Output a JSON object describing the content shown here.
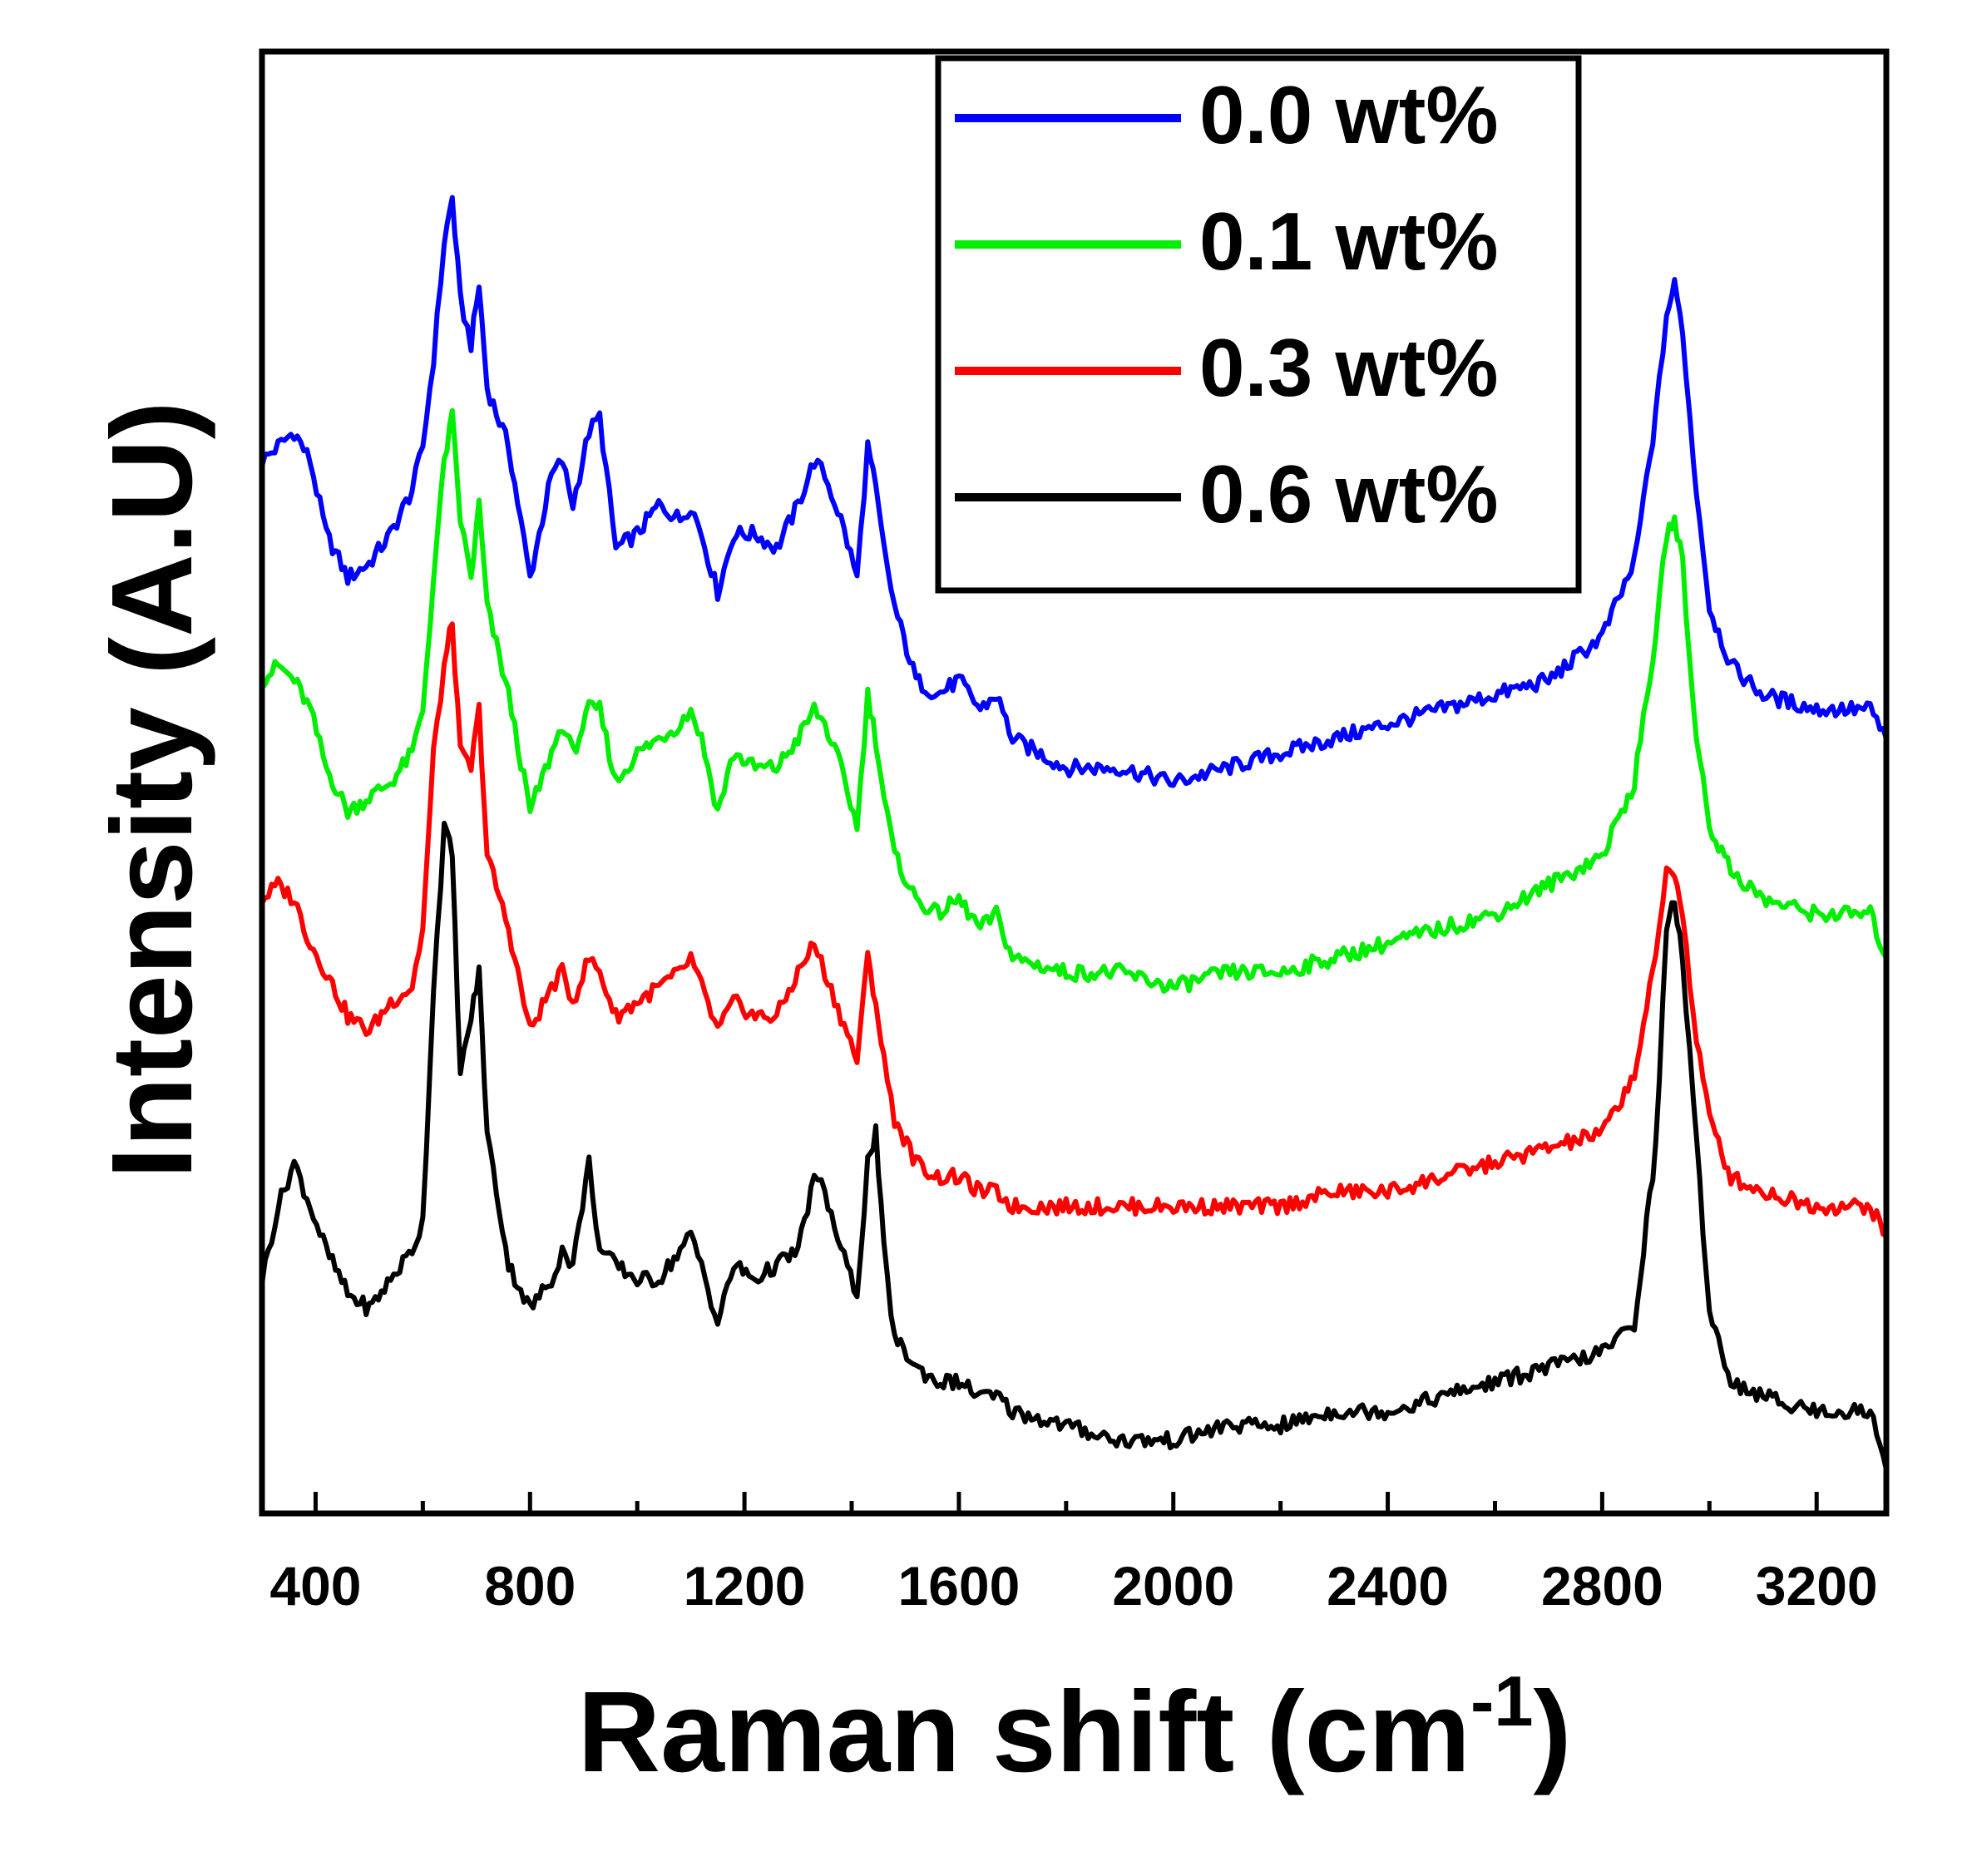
{
  "chart_data": {
    "type": "line",
    "title": "",
    "xlabel": "Raman shift (cm",
    "xlabel_superscript": "-1",
    "xlabel_suffix": ")",
    "ylabel": "Intensity (A.U)",
    "xlim": [
      300,
      3330
    ],
    "ylim": [
      0,
      100
    ],
    "y_ticks_shown": false,
    "grid": false,
    "legend_position": "top-right",
    "x_ticks": [
      400,
      800,
      1200,
      1600,
      2000,
      2400,
      2800,
      3200
    ],
    "x_tick_labels": [
      "400",
      "800",
      "1200",
      "1600",
      "2000",
      "2400",
      "2800",
      "3200"
    ],
    "series": [
      {
        "name": "0.0 wt%",
        "color": "#0000ff",
        "x": [
          300,
          330,
          360,
          390,
          420,
          460,
          500,
          540,
          580,
          600,
          620,
          640,
          655,
          670,
          690,
          705,
          720,
          760,
          800,
          840,
          860,
          880,
          910,
          930,
          960,
          1000,
          1040,
          1080,
          1100,
          1120,
          1150,
          1180,
          1220,
          1260,
          1300,
          1330,
          1350,
          1380,
          1410,
          1430,
          1445,
          1460,
          1480,
          1520,
          1560,
          1600,
          1640,
          1670,
          1700,
          1800,
          1900,
          2000,
          2100,
          2200,
          2300,
          2400,
          2500,
          2600,
          2700,
          2800,
          2860,
          2900,
          2920,
          2935,
          2950,
          2970,
          3000,
          3040,
          3100,
          3200,
          3300,
          3330
        ],
        "y": [
          72,
          73,
          74,
          72,
          67,
          64,
          65,
          67,
          70,
          73,
          79,
          87,
          90,
          83,
          80,
          84,
          77,
          73,
          64,
          71,
          72,
          69,
          74,
          75,
          66,
          67,
          69,
          68,
          69,
          67,
          63,
          67,
          67,
          66,
          69,
          72,
          71,
          68,
          64,
          73,
          70,
          66,
          62,
          57,
          56,
          57,
          55,
          56,
          53,
          51,
          51,
          50,
          51,
          52,
          53,
          54,
          55,
          56,
          57,
          60,
          65,
          75,
          82,
          84,
          81,
          72,
          62,
          58,
          56,
          55,
          55,
          53
        ]
      },
      {
        "name": "0.1 wt%",
        "color": "#00ee00",
        "x": [
          300,
          330,
          360,
          390,
          420,
          460,
          500,
          540,
          580,
          600,
          620,
          640,
          655,
          670,
          690,
          705,
          720,
          760,
          800,
          840,
          860,
          880,
          910,
          930,
          960,
          1000,
          1040,
          1080,
          1100,
          1120,
          1150,
          1180,
          1220,
          1260,
          1300,
          1330,
          1350,
          1380,
          1410,
          1430,
          1445,
          1460,
          1480,
          1520,
          1560,
          1600,
          1640,
          1670,
          1700,
          1800,
          1900,
          2000,
          2100,
          2200,
          2300,
          2400,
          2500,
          2600,
          2700,
          2800,
          2860,
          2900,
          2920,
          2935,
          2950,
          2970,
          3000,
          3040,
          3100,
          3200,
          3300,
          3330
        ],
        "y": [
          57,
          58,
          57,
          55,
          51,
          48,
          49,
          50,
          52,
          55,
          64,
          72,
          75,
          68,
          64,
          69,
          62,
          56,
          48,
          52,
          54,
          52,
          55,
          55,
          50,
          52,
          53,
          54,
          55,
          53,
          48,
          52,
          51,
          51,
          53,
          55,
          54,
          51,
          47,
          56,
          53,
          49,
          45,
          42,
          41,
          42,
          40,
          41,
          38,
          37,
          37,
          36,
          37,
          37,
          38,
          39,
          40,
          41,
          43,
          45,
          50,
          60,
          67,
          68,
          65,
          55,
          47,
          44,
          42,
          41,
          41,
          38
        ]
      },
      {
        "name": "0.3 wt%",
        "color": "#ff0000",
        "x": [
          300,
          330,
          360,
          390,
          420,
          460,
          500,
          540,
          580,
          600,
          620,
          640,
          655,
          670,
          690,
          705,
          720,
          760,
          800,
          840,
          860,
          880,
          910,
          930,
          960,
          1000,
          1040,
          1080,
          1100,
          1120,
          1150,
          1180,
          1220,
          1260,
          1300,
          1330,
          1350,
          1380,
          1410,
          1430,
          1445,
          1460,
          1480,
          1520,
          1560,
          1600,
          1640,
          1670,
          1700,
          1800,
          1900,
          2000,
          2100,
          2200,
          2300,
          2400,
          2500,
          2600,
          2700,
          2800,
          2860,
          2900,
          2920,
          2935,
          2950,
          2970,
          3000,
          3040,
          3100,
          3200,
          3300,
          3330
        ],
        "y": [
          42,
          43,
          42,
          39,
          37,
          34,
          33,
          35,
          36,
          40,
          52,
          58,
          61,
          52,
          51,
          55,
          45,
          40,
          33,
          36,
          37,
          35,
          38,
          37,
          34,
          35,
          36,
          37,
          38,
          36,
          33,
          35,
          34,
          34,
          37,
          39,
          37,
          34,
          31,
          38,
          35,
          31,
          27,
          24,
          23,
          23,
          22,
          22,
          21,
          21,
          21,
          21,
          21,
          21,
          22,
          22,
          23,
          24,
          25,
          26,
          30,
          38,
          44,
          44,
          41,
          34,
          27,
          23,
          22,
          21,
          21,
          19
        ]
      },
      {
        "name": "0.6 wt%",
        "color": "#000000",
        "x": [
          300,
          330,
          360,
          390,
          420,
          460,
          500,
          540,
          580,
          600,
          620,
          640,
          655,
          670,
          690,
          705,
          720,
          760,
          800,
          840,
          860,
          880,
          910,
          930,
          960,
          1000,
          1040,
          1080,
          1100,
          1120,
          1150,
          1180,
          1220,
          1260,
          1300,
          1330,
          1350,
          1380,
          1410,
          1430,
          1445,
          1460,
          1480,
          1520,
          1560,
          1600,
          1640,
          1670,
          1700,
          1800,
          1900,
          2000,
          2100,
          2200,
          2300,
          2400,
          2500,
          2600,
          2700,
          2800,
          2860,
          2900,
          2920,
          2935,
          2950,
          2970,
          3000,
          3040,
          3100,
          3200,
          3300,
          3330
        ],
        "y": [
          16,
          21,
          24,
          21,
          18,
          15,
          14,
          16,
          18,
          20,
          36,
          47,
          45,
          30,
          34,
          37,
          26,
          17,
          14,
          16,
          18,
          17,
          24,
          18,
          17,
          16,
          16,
          18,
          19,
          17,
          13,
          17,
          16,
          17,
          18,
          23,
          22,
          18,
          15,
          24,
          26,
          18,
          12,
          10,
          9,
          9,
          8,
          8,
          7,
          6,
          5,
          5,
          6,
          6,
          7,
          7,
          8,
          9,
          10,
          11,
          13,
          25,
          40,
          42,
          38,
          28,
          14,
          9,
          8,
          7,
          7,
          3
        ]
      }
    ]
  }
}
